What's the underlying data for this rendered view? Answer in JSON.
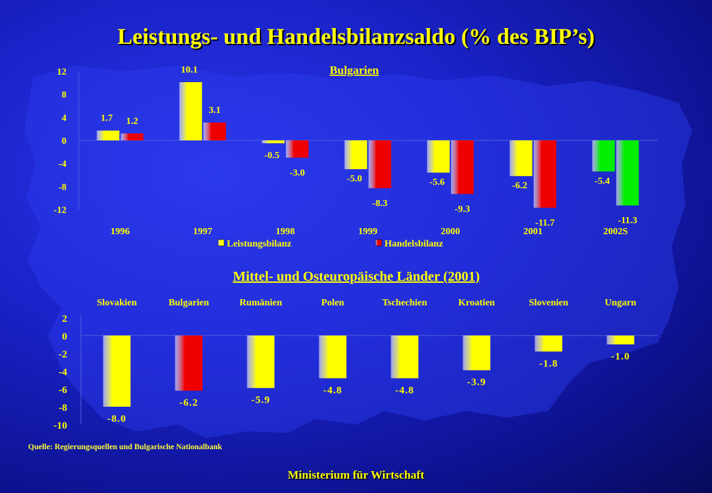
{
  "title": "Leistungs- und Handelsbilanzsaldo (% des BIP’s)",
  "colors": {
    "leistungsbilanz": "#ffff00",
    "handelsbilanz": "#ee0000",
    "highlight_2002": "#00ee00",
    "highlight_bulgarien": "#ee0000",
    "text": "#ffff00"
  },
  "chart_data": [
    {
      "type": "bar",
      "title": "Bulgarien",
      "categories": [
        "1996",
        "1997",
        "1998",
        "1999",
        "2000",
        "2001",
        "2002S"
      ],
      "series": [
        {
          "name": "Leistungsbilanz",
          "values": [
            1.7,
            10.1,
            -0.5,
            -5.0,
            -5.6,
            -6.2,
            -5.4
          ]
        },
        {
          "name": "Handelsbilanz",
          "values": [
            1.2,
            3.1,
            -3.0,
            -8.3,
            -9.3,
            -11.7,
            -11.3
          ]
        }
      ],
      "value_labels": {
        "Leistungsbilanz": [
          "1.7",
          "10.1",
          "-0.5",
          "-5.0",
          "-5.6",
          "-6.2",
          "-5.4"
        ],
        "Handelsbilanz": [
          "1.2",
          "3.1",
          "-3.0",
          "-8.3",
          "-9.3",
          "-11.7",
          "-11.3"
        ]
      },
      "yticks": [
        "12",
        "8",
        "4",
        "0",
        "-4",
        "-8",
        "-12"
      ],
      "ylim": [
        -12,
        12
      ],
      "legend_position": "bottom",
      "highlighted_category": "2002S"
    },
    {
      "type": "bar",
      "title": "Mittel- und Osteuropäische Länder (2001)",
      "categories": [
        "Slovakien",
        "Bulgarien",
        "Rumänien",
        "Polen",
        "Tschechien",
        "Kroatien",
        "Slovenien",
        "Ungarn"
      ],
      "values": [
        -8.0,
        -6.2,
        -5.9,
        -4.8,
        -4.8,
        -3.9,
        -1.8,
        -1.0
      ],
      "value_labels": [
        "-8.0",
        "-6.2",
        "-5.9",
        "-4.8",
        "-4.8",
        "-3.9",
        "-1.8",
        "-1.0"
      ],
      "yticks": [
        "2",
        "0",
        "-2",
        "-4",
        "-6",
        "-8",
        "-10"
      ],
      "ylim": [
        -10,
        2
      ],
      "highlighted_category": "Bulgarien",
      "category_labels_position": "top"
    }
  ],
  "source": "Quelle: Regierungsquellen und Bulgarische Nationalbank",
  "footer": "Ministerium für Wirtschaft"
}
